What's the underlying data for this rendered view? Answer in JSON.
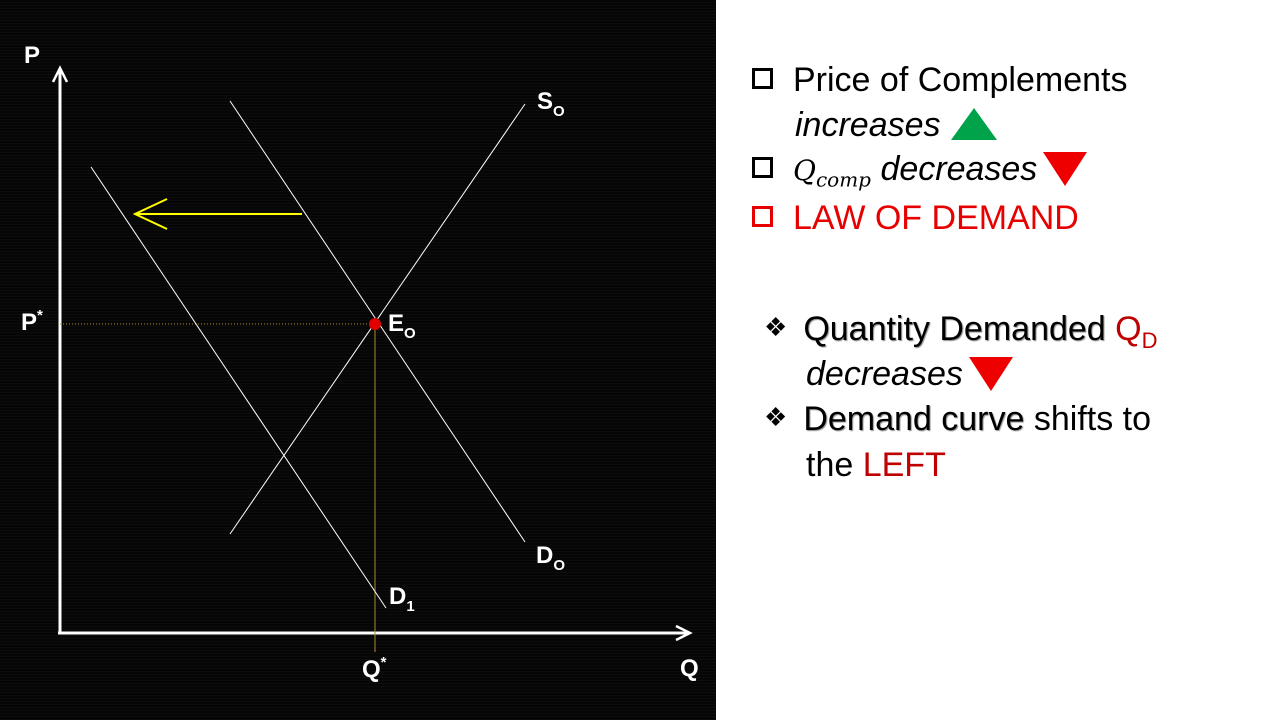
{
  "axes": {
    "y_label": "P",
    "x_label": "Q",
    "p_star": "P",
    "p_star_sup": "*",
    "q_star": "Q",
    "q_star_sup": "*"
  },
  "curves": {
    "supply": {
      "label": "S",
      "sub": "O"
    },
    "demand_original": {
      "label": "D",
      "sub": "O"
    },
    "demand_new": {
      "label": "D",
      "sub": "1"
    },
    "equilibrium": {
      "label": "E",
      "sub": "O"
    }
  },
  "colors": {
    "background": "#060606",
    "curve": "#ffffff",
    "arrow": "#ffff00",
    "equilibrium_point": "#e00000",
    "guide_line": "#b08a2a",
    "up_triangle": "#00a24a",
    "down_triangle": "#ee0000",
    "highlight": "#e60000",
    "dark_red": "#c00000"
  },
  "bullets": {
    "item1_line1": "Price of Complements",
    "item1_line2": "increases",
    "item2_q": "Q",
    "item2_sub": "comp",
    "item2_text": "decreases",
    "item3": "LAW OF DEMAND"
  },
  "points": {
    "p1_label": "Quantity Demanded",
    "p1_q": "Q",
    "p1_sub": "D",
    "p1_line2": "decreases",
    "p2_label": "Demand curve",
    "p2_rest": "shifts to",
    "p2_line2_prefix": "the",
    "p2_line2_highlight": "LEFT"
  },
  "icons": {
    "checkbox": "checkbox-icon",
    "diamond": "❖",
    "up": "green-up-triangle-icon",
    "down": "red-down-triangle-icon"
  }
}
